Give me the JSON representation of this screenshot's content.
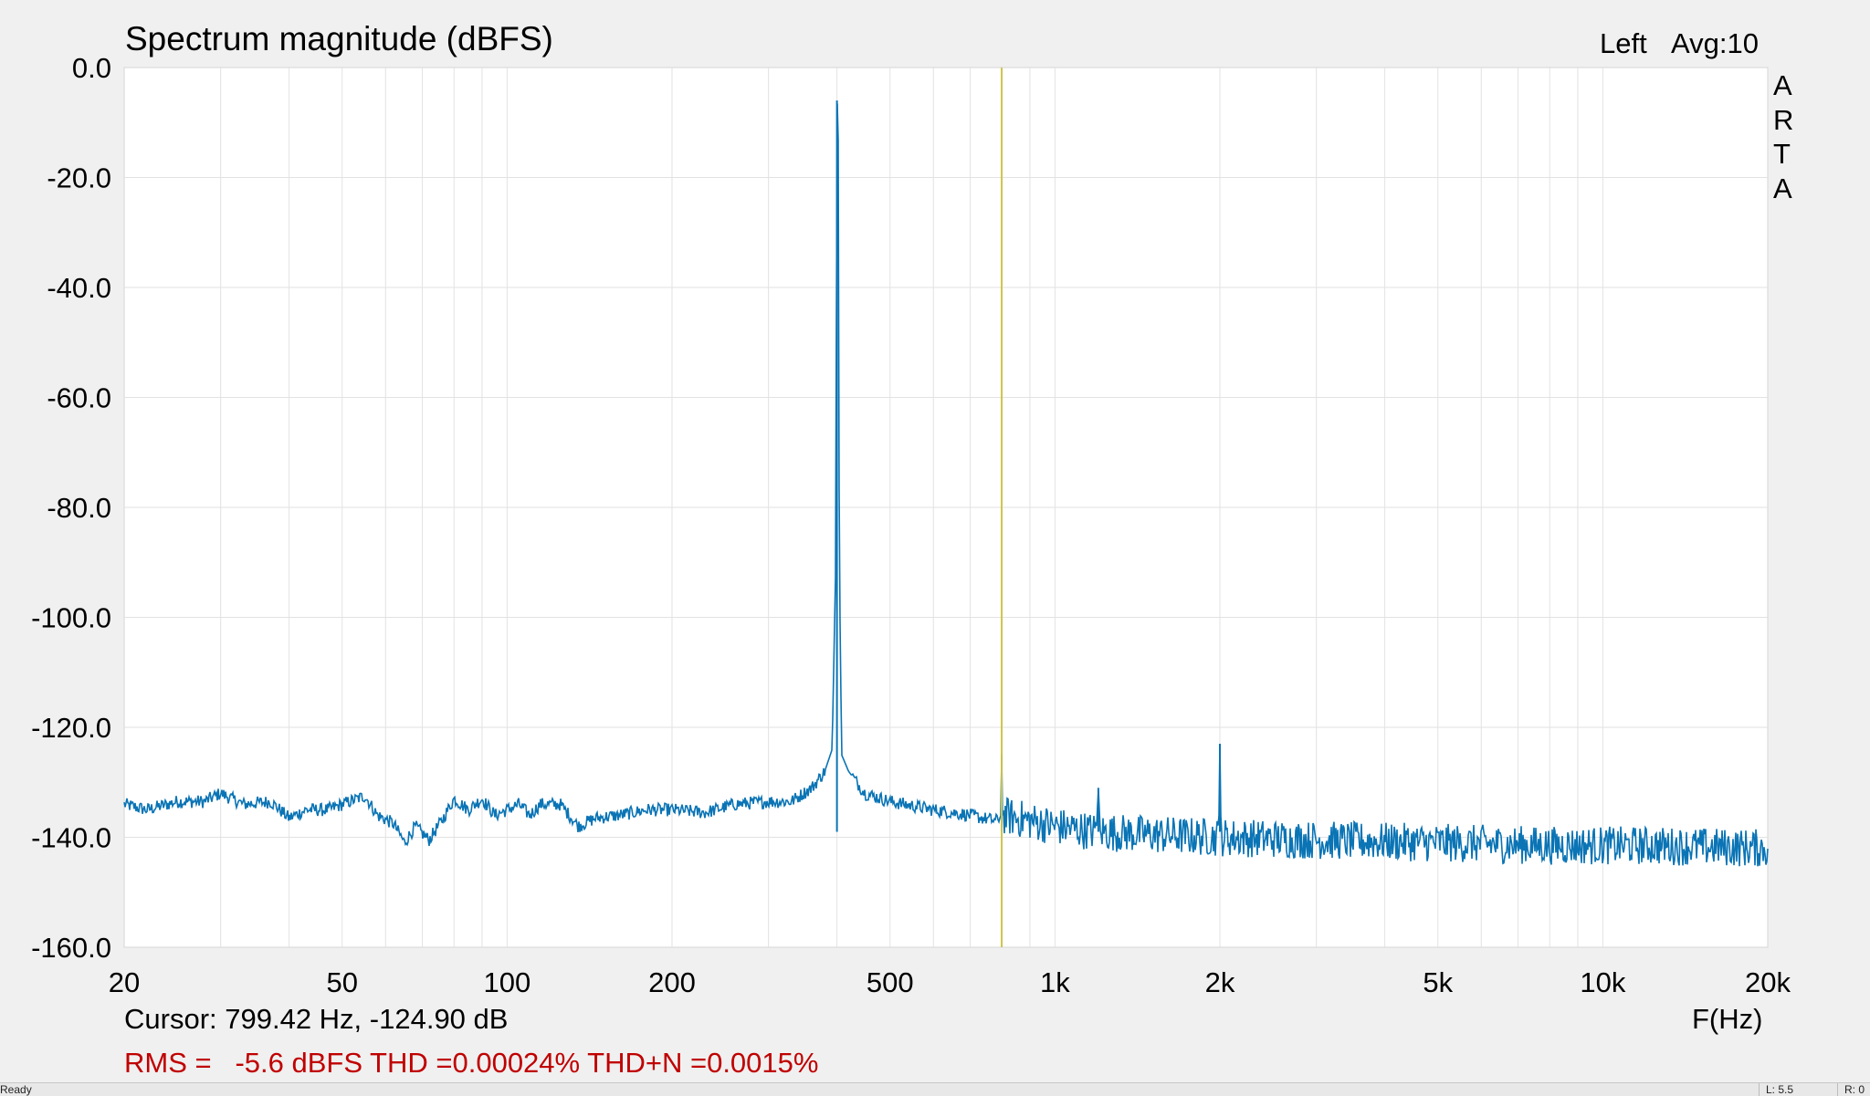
{
  "window": {
    "title": "Spectrum magnitude (dBFS)",
    "channel": "Left",
    "avg": "Avg:10",
    "brand_letters": [
      "A",
      "R",
      "T",
      "A"
    ]
  },
  "cursor": {
    "text": "Cursor: 799.42 Hz, -124.90 dB",
    "freq_hz": 799.42,
    "level_db": -124.9
  },
  "measurement": {
    "text": "RMS =   -5.6 dBFS THD =0.00024% THD+N =0.0015%",
    "rms_dbfs": -5.6,
    "thd_percent": 0.00024,
    "thd_n_percent": 0.0015
  },
  "status": {
    "ready": "Ready",
    "left": "L: 5.5",
    "right": "R: 0"
  },
  "colors": {
    "background": "#f0f0f0",
    "plot_area": "#ffffff",
    "grid": "#e2e2e2",
    "trace": "#0a74b5",
    "cursor_line": "#cfc34a",
    "measurement_text": "#c00000"
  },
  "chart_data": {
    "type": "line",
    "title": "Spectrum magnitude (dBFS)",
    "xlabel": "F(Hz)",
    "ylabel": "",
    "x_scale": "log",
    "xlim": [
      20,
      20000
    ],
    "ylim": [
      -160,
      0
    ],
    "grid": true,
    "x_ticks": [
      {
        "value": 20,
        "label": "20"
      },
      {
        "value": 50,
        "label": "50"
      },
      {
        "value": 100,
        "label": "100"
      },
      {
        "value": 200,
        "label": "200"
      },
      {
        "value": 500,
        "label": "500"
      },
      {
        "value": 1000,
        "label": "1k"
      },
      {
        "value": 2000,
        "label": "2k"
      },
      {
        "value": 5000,
        "label": "5k"
      },
      {
        "value": 10000,
        "label": "10k"
      },
      {
        "value": 20000,
        "label": "20k"
      }
    ],
    "y_ticks": [
      {
        "value": 0,
        "label": "0.0"
      },
      {
        "value": -20,
        "label": "-20.0"
      },
      {
        "value": -40,
        "label": "-40.0"
      },
      {
        "value": -60,
        "label": "-60.0"
      },
      {
        "value": -80,
        "label": "-80.0"
      },
      {
        "value": -100,
        "label": "-100.0"
      },
      {
        "value": -120,
        "label": "-120.0"
      },
      {
        "value": -140,
        "label": "-140.0"
      },
      {
        "value": -160,
        "label": "-160.0"
      }
    ],
    "series": [
      {
        "points": [
          [
            20,
            -134
          ],
          [
            22,
            -135
          ],
          [
            25,
            -133.5
          ],
          [
            28,
            -133.5
          ],
          [
            30,
            -132
          ],
          [
            33,
            -134
          ],
          [
            37,
            -133.5
          ],
          [
            40,
            -136.5
          ],
          [
            43,
            -135
          ],
          [
            47,
            -135
          ],
          [
            50,
            -134
          ],
          [
            55,
            -132.5
          ],
          [
            58,
            -136
          ],
          [
            62,
            -137.5
          ],
          [
            65,
            -141
          ],
          [
            68,
            -138
          ],
          [
            72,
            -140.5
          ],
          [
            76,
            -137
          ],
          [
            80,
            -133
          ],
          [
            85,
            -135
          ],
          [
            90,
            -133
          ],
          [
            95,
            -136
          ],
          [
            100,
            -135
          ],
          [
            105,
            -134
          ],
          [
            110,
            -136
          ],
          [
            115,
            -134
          ],
          [
            125,
            -134
          ],
          [
            135,
            -138
          ],
          [
            145,
            -136.5
          ],
          [
            160,
            -136
          ],
          [
            180,
            -135
          ],
          [
            200,
            -135
          ],
          [
            230,
            -135.5
          ],
          [
            260,
            -134
          ],
          [
            300,
            -133.5
          ],
          [
            330,
            -133.5
          ],
          [
            360,
            -131
          ],
          [
            380,
            -128
          ],
          [
            392,
            -124
          ],
          [
            398,
            -90
          ],
          [
            400,
            -6
          ],
          [
            402,
            -8
          ],
          [
            404,
            -90
          ],
          [
            408,
            -125
          ],
          [
            420,
            -128
          ],
          [
            450,
            -132
          ],
          [
            500,
            -133.5
          ],
          [
            600,
            -135
          ],
          [
            700,
            -136
          ],
          [
            780,
            -137
          ],
          [
            798,
            -136
          ],
          [
            799.42,
            -124.9
          ],
          [
            801,
            -136
          ],
          [
            900,
            -137
          ],
          [
            1000,
            -138
          ],
          [
            1190,
            -139
          ],
          [
            1200,
            -131
          ],
          [
            1210,
            -139
          ],
          [
            1500,
            -139.5
          ],
          [
            1990,
            -140
          ],
          [
            2000,
            -123
          ],
          [
            2010,
            -140
          ],
          [
            3000,
            -140.5
          ],
          [
            5000,
            -141
          ],
          [
            8000,
            -141.5
          ],
          [
            12000,
            -141.5
          ],
          [
            20000,
            -142
          ]
        ],
        "noise_band_db": 3.5
      }
    ],
    "cursor_freq_hz": 799.42,
    "annotations": [
      "Left",
      "Avg:10",
      "A",
      "R",
      "T",
      "A"
    ]
  }
}
